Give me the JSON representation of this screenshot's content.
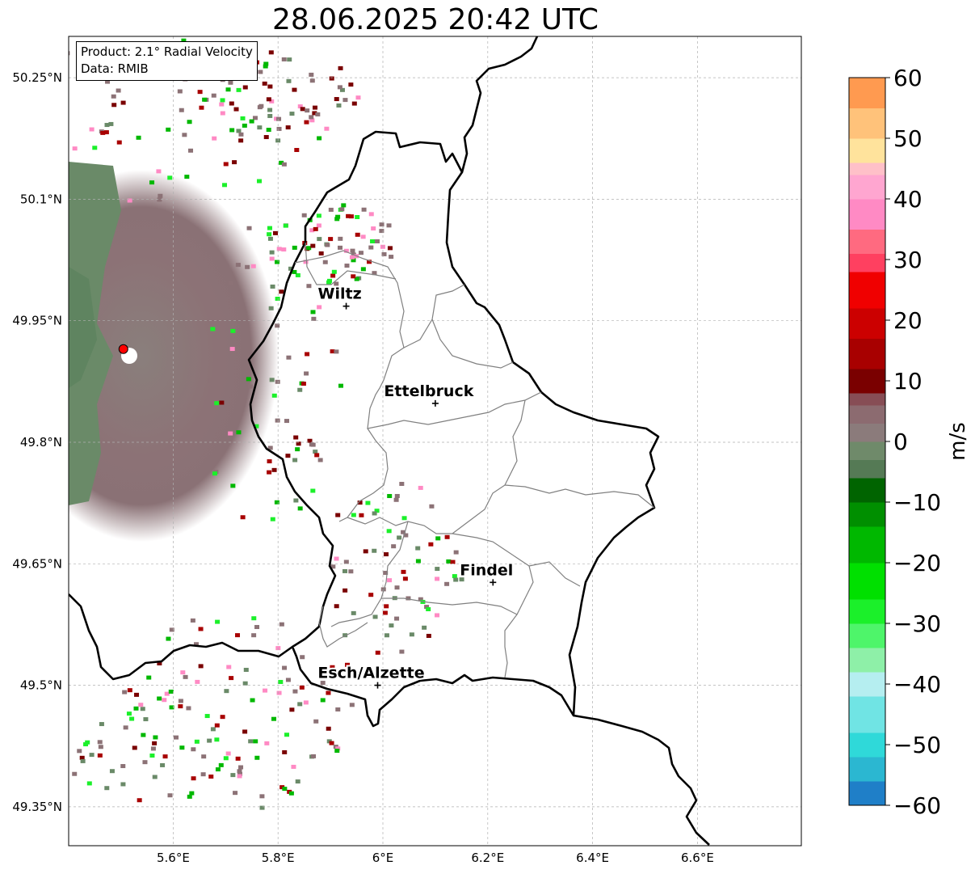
{
  "title": "28.06.2025 20:42 UTC",
  "info": {
    "product": "Product: 2.1° Radial Velocity",
    "data": "Data: RMIB"
  },
  "axes": {
    "lat_ticks": [
      {
        "value": 50.25,
        "label": "50.25°N"
      },
      {
        "value": 50.1,
        "label": "50.1°N"
      },
      {
        "value": 49.95,
        "label": "49.95°N"
      },
      {
        "value": 49.8,
        "label": "49.8°N"
      },
      {
        "value": 49.65,
        "label": "49.65°N"
      },
      {
        "value": 49.5,
        "label": "49.5°N"
      },
      {
        "value": 49.35,
        "label": "49.35°N"
      }
    ],
    "lon_ticks": [
      {
        "value": 5.6,
        "label": "5.6°E"
      },
      {
        "value": 5.8,
        "label": "5.8°E"
      },
      {
        "value": 6.0,
        "label": "6°E"
      },
      {
        "value": 6.2,
        "label": "6.2°E"
      },
      {
        "value": 6.4,
        "label": "6.4°E"
      },
      {
        "value": 6.6,
        "label": "6.6°E"
      }
    ]
  },
  "cities": [
    {
      "name": "Wiltz",
      "lon": 5.93,
      "lat": 49.968
    },
    {
      "name": "Ettelbruck",
      "lon": 6.1,
      "lat": 49.848
    },
    {
      "name": "Findel",
      "lon": 6.21,
      "lat": 49.627
    },
    {
      "name": "Esch/Alzette",
      "lon": 5.99,
      "lat": 49.5
    }
  ],
  "radar_site": {
    "lon": 5.505,
    "lat": 49.915,
    "color": "#ff0000"
  },
  "colorbar": {
    "unit": "m/s",
    "ticks": [
      {
        "value": 60,
        "label": "60"
      },
      {
        "value": 50,
        "label": "50"
      },
      {
        "value": 40,
        "label": "40"
      },
      {
        "value": 30,
        "label": "30"
      },
      {
        "value": 20,
        "label": "20"
      },
      {
        "value": 10,
        "label": "10"
      },
      {
        "value": 0,
        "label": "0"
      },
      {
        "value": -10,
        "label": "−10"
      },
      {
        "value": -20,
        "label": "−20"
      },
      {
        "value": -30,
        "label": "−30"
      },
      {
        "value": -40,
        "label": "−40"
      },
      {
        "value": -50,
        "label": "−50"
      },
      {
        "value": -60,
        "label": "−60"
      }
    ],
    "stops": [
      {
        "from": -60,
        "to": -56,
        "color": "#1f7fc8"
      },
      {
        "from": -56,
        "to": -52,
        "color": "#2bb7d1"
      },
      {
        "from": -52,
        "to": -48,
        "color": "#2fd9d9"
      },
      {
        "from": -48,
        "to": -42,
        "color": "#70e4e4"
      },
      {
        "from": -42,
        "to": -38,
        "color": "#b5eef0"
      },
      {
        "from": -38,
        "to": -34,
        "color": "#8ef0a8"
      },
      {
        "from": -34,
        "to": -30,
        "color": "#4ef56a"
      },
      {
        "from": -30,
        "to": -26,
        "color": "#1bf02a"
      },
      {
        "from": -26,
        "to": -20,
        "color": "#00e000"
      },
      {
        "from": -20,
        "to": -14,
        "color": "#00b800"
      },
      {
        "from": -14,
        "to": -10,
        "color": "#008f00"
      },
      {
        "from": -10,
        "to": -6,
        "color": "#006400"
      },
      {
        "from": -6,
        "to": -3,
        "color": "#557a55"
      },
      {
        "from": -3,
        "to": 0,
        "color": "#6f8a6a"
      },
      {
        "from": 0,
        "to": 3,
        "color": "#8b7b7b"
      },
      {
        "from": 3,
        "to": 6,
        "color": "#8c6b70"
      },
      {
        "from": 6,
        "to": 8,
        "color": "#874d55"
      },
      {
        "from": 8,
        "to": 12,
        "color": "#7a0000"
      },
      {
        "from": 12,
        "to": 17,
        "color": "#a80000"
      },
      {
        "from": 17,
        "to": 22,
        "color": "#cc0000"
      },
      {
        "from": 22,
        "to": 28,
        "color": "#f00000"
      },
      {
        "from": 28,
        "to": 31,
        "color": "#ff4060"
      },
      {
        "from": 31,
        "to": 35,
        "color": "#ff6a80"
      },
      {
        "from": 35,
        "to": 40,
        "color": "#ff8ac4"
      },
      {
        "from": 40,
        "to": 44,
        "color": "#ffa6d0"
      },
      {
        "from": 44,
        "to": 46,
        "color": "#ffc0c8"
      },
      {
        "from": 46,
        "to": 50,
        "color": "#ffe39c"
      },
      {
        "from": 50,
        "to": 55,
        "color": "#ffc27a"
      },
      {
        "from": 55,
        "to": 60,
        "color": "#ff9a50"
      }
    ]
  },
  "colors": {
    "velocity_near_zero_green": "#6a8a68",
    "velocity_near_zero_red": "#8c7276",
    "border": "#000000",
    "canton_border": "#808080",
    "grid": "#b0b0b0"
  }
}
